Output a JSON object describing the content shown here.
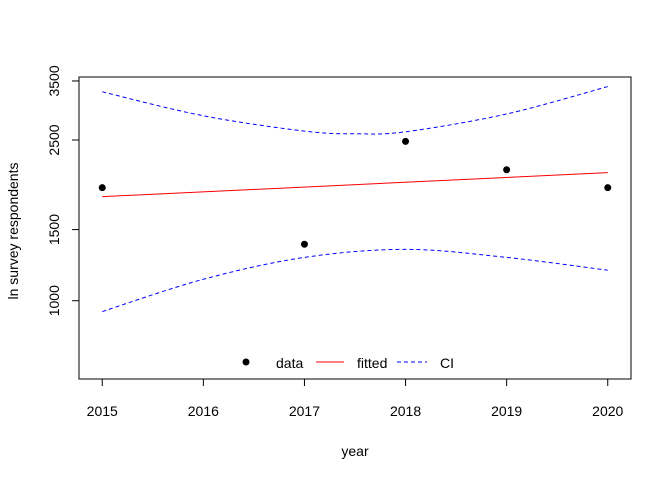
{
  "chart_data": {
    "type": "scatter",
    "title": "",
    "xlabel": "year",
    "ylabel": "ln survey respondents",
    "xlim": [
      2014.77,
      2020.23
    ],
    "ylim": [
      640,
      3580
    ],
    "y_scale": "log",
    "x_ticks": [
      2015,
      2016,
      2017,
      2018,
      2019,
      2020
    ],
    "y_ticks": [
      1000,
      1500,
      2500,
      3500
    ],
    "grid": false,
    "legend_position": "bottom-center",
    "series": [
      {
        "name": "data",
        "kind": "points",
        "color": "#000000",
        "x": [
          2015,
          2017,
          2018,
          2019,
          2020
        ],
        "y": [
          1905,
          1380,
          2480,
          2110,
          1905
        ]
      },
      {
        "name": "fitted",
        "kind": "line",
        "color": "#ff0000",
        "x": [
          2015,
          2020
        ],
        "y": [
          1810,
          2075
        ]
      },
      {
        "name": "CI",
        "kind": "dashed-line",
        "color": "#0000ff",
        "x": [
          2015,
          2016,
          2017,
          2017.5,
          2018,
          2019,
          2020
        ],
        "y": [
          3290,
          2870,
          2630,
          2590,
          2620,
          2900,
          3390
        ]
      },
      {
        "name": "CI",
        "kind": "dashed-line",
        "color": "#0000ff",
        "x": [
          2015,
          2016,
          2017,
          2018,
          2019,
          2020
        ],
        "y": [
          940,
          1130,
          1280,
          1340,
          1280,
          1190
        ]
      }
    ]
  },
  "legend": {
    "items": [
      {
        "label": "data",
        "kind": "point",
        "color": "#000000"
      },
      {
        "label": "fitted",
        "kind": "line",
        "color": "#ff0000"
      },
      {
        "label": "CI",
        "kind": "dashed",
        "color": "#0000ff"
      }
    ]
  }
}
